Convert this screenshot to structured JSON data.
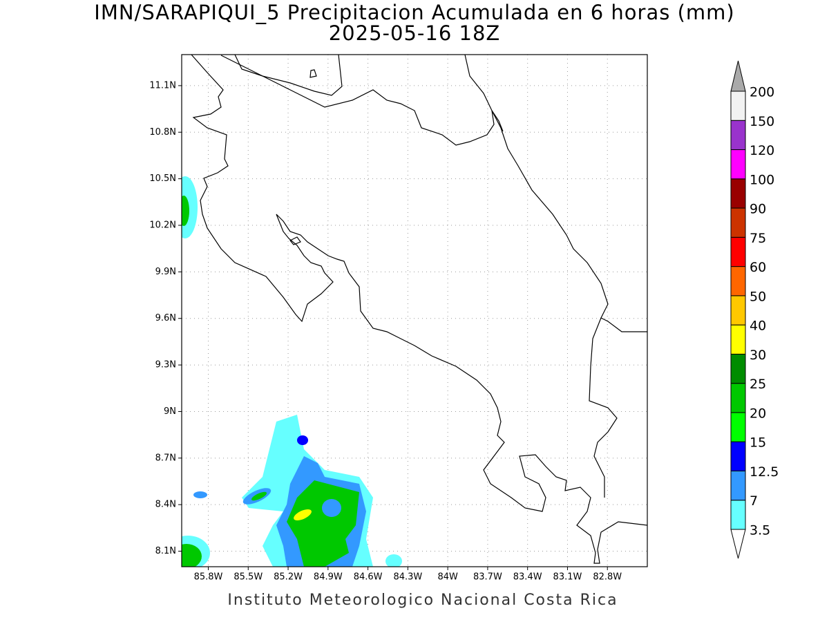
{
  "title": "IMN/SARAPIQUI_5 Precipitacion Acumulada en 6 horas (mm)",
  "subtitle": "2025-05-16 18Z",
  "map": {
    "xlim": [
      -86.0,
      -82.5
    ],
    "ylim": [
      8.0,
      11.3
    ],
    "grid": true,
    "xticks": [
      {
        "value": -85.8,
        "label": "85.8W"
      },
      {
        "value": -85.5,
        "label": "85.5W"
      },
      {
        "value": -85.2,
        "label": "85.2W"
      },
      {
        "value": -84.9,
        "label": "84.9W"
      },
      {
        "value": -84.6,
        "label": "84.6W"
      },
      {
        "value": -84.3,
        "label": "84.3W"
      },
      {
        "value": -84.0,
        "label": "84W"
      },
      {
        "value": -83.7,
        "label": "83.7W"
      },
      {
        "value": -83.4,
        "label": "83.4W"
      },
      {
        "value": -83.1,
        "label": "83.1W"
      },
      {
        "value": -82.8,
        "label": "82.8W"
      }
    ],
    "yticks": [
      {
        "value": 8.1,
        "label": "8.1N"
      },
      {
        "value": 8.4,
        "label": "8.4N"
      },
      {
        "value": 8.7,
        "label": "8.7N"
      },
      {
        "value": 9.0,
        "label": "9N"
      },
      {
        "value": 9.3,
        "label": "9.3N"
      },
      {
        "value": 9.6,
        "label": "9.6N"
      },
      {
        "value": 9.9,
        "label": "9.9N"
      },
      {
        "value": 10.2,
        "label": "10.2N"
      },
      {
        "value": 10.5,
        "label": "10.5N"
      },
      {
        "value": 10.8,
        "label": "10.8N"
      },
      {
        "value": 11.1,
        "label": "11.1N"
      }
    ]
  },
  "colorbar": {
    "levels": [
      3.5,
      7,
      12.5,
      15,
      20,
      25,
      30,
      40,
      50,
      60,
      75,
      90,
      100,
      120,
      150,
      200
    ],
    "colors": [
      "#ffffff",
      "#66ffff",
      "#3399ff",
      "#0000ff",
      "#00ff00",
      "#00c800",
      "#008c00",
      "#ffff00",
      "#ffc800",
      "#ff6600",
      "#ff0000",
      "#cc3300",
      "#990000",
      "#ff00ff",
      "#9933cc",
      "#f2f2f2",
      "#aaaaaa"
    ]
  },
  "footer": "Instituto Meteorologico Nacional Costa Rica"
}
